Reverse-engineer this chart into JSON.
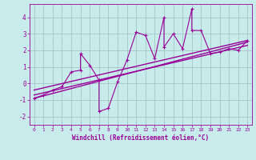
{
  "title": "",
  "xlabel": "Windchill (Refroidissement éolien,°C)",
  "ylabel": "",
  "background_color": "#c8ecec",
  "line_color": "#990099",
  "xlim": [
    -0.5,
    23.5
  ],
  "ylim": [
    -2.5,
    4.8
  ],
  "xticks": [
    0,
    1,
    2,
    3,
    4,
    5,
    6,
    7,
    8,
    9,
    10,
    11,
    12,
    13,
    14,
    15,
    16,
    17,
    18,
    19,
    20,
    21,
    22,
    23
  ],
  "yticks": [
    -2,
    -1,
    0,
    1,
    2,
    3,
    4
  ],
  "scatter_x": [
    0,
    1,
    2,
    3,
    4,
    5,
    5,
    6,
    7,
    7,
    8,
    9,
    10,
    11,
    12,
    13,
    14,
    14,
    15,
    16,
    17,
    17,
    18,
    19,
    20,
    21,
    22,
    23
  ],
  "scatter_y": [
    -0.9,
    -0.7,
    -0.4,
    -0.2,
    0.7,
    0.8,
    1.8,
    1.1,
    0.2,
    -1.7,
    -1.5,
    0.1,
    1.4,
    3.1,
    2.9,
    1.5,
    4.0,
    2.2,
    3.0,
    2.1,
    4.5,
    3.2,
    3.2,
    1.8,
    1.9,
    2.1,
    2.0,
    2.6
  ],
  "line1_x": [
    0,
    23
  ],
  "line1_y": [
    -0.9,
    2.5
  ],
  "line2_x": [
    0,
    23
  ],
  "line2_y": [
    -0.7,
    2.3
  ],
  "line3_x": [
    0,
    23
  ],
  "line3_y": [
    -0.4,
    2.6
  ],
  "grid_color": "#9fbfbf",
  "marker": "+"
}
